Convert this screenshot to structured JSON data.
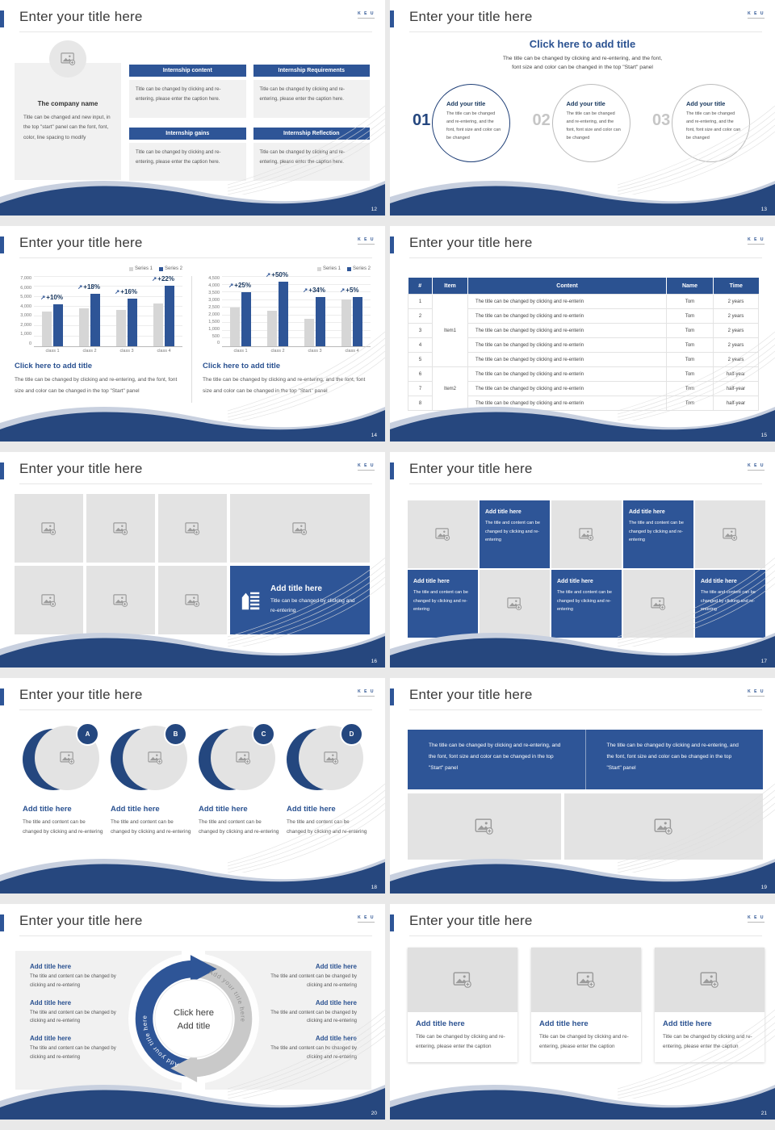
{
  "colors": {
    "brand_blue": "#2e5597",
    "wave_navy": "#26477e",
    "heading_blue": "#2b5291",
    "placeholder_gray": "#e3e3e3",
    "series1_gray": "#d6d6d6",
    "series2_blue": "#2e5597"
  },
  "logo": {
    "text": "K E U"
  },
  "chart_data": [
    {
      "type": "bar",
      "title": "",
      "categories": [
        "class 1",
        "class 2",
        "class 3",
        "class 4"
      ],
      "series": [
        {
          "name": "Series 1",
          "color": "#d6d6d6",
          "values": [
            3500,
            3800,
            3700,
            4300
          ]
        },
        {
          "name": "Series 2",
          "color": "#2e5597",
          "values": [
            4200,
            5300,
            4800,
            6100
          ]
        }
      ],
      "bar_labels": [
        "+10%",
        "+18%",
        "+16%",
        "+22%"
      ],
      "xlabel": "",
      "ylabel": "",
      "ylim": [
        0,
        7000
      ],
      "ytick": 1000,
      "grid": true,
      "legend_position": "top-right"
    },
    {
      "type": "bar",
      "title": "",
      "categories": [
        "class 1",
        "class 2",
        "class 3",
        "class 4"
      ],
      "series": [
        {
          "name": "Series 1",
          "color": "#d6d6d6",
          "values": [
            2500,
            2300,
            1800,
            3050
          ]
        },
        {
          "name": "Series 2",
          "color": "#2e5597",
          "values": [
            3500,
            4200,
            3200,
            3200
          ]
        }
      ],
      "bar_labels": [
        "+25%",
        "+50%",
        "+34%",
        "+5%"
      ],
      "xlabel": "",
      "ylabel": "",
      "ylim": [
        0,
        4500
      ],
      "ytick": 500,
      "grid": true,
      "legend_position": "top-right"
    }
  ],
  "slides": {
    "s12": {
      "page": "12",
      "title": "Enter your title here",
      "company": {
        "name": "The company name",
        "desc": "Title can be changed and new input, in the top \"start\" panel can the font, font, color, line spacing to modify"
      },
      "boxes": [
        {
          "header": "Internship content",
          "body": "Title can be changed by clicking and re-entering, please enter the caption here."
        },
        {
          "header": "Internship Requirements",
          "body": "Title can be changed by clicking and re-entering, please enter the caption here."
        },
        {
          "header": "Internship gains",
          "body": "Title can be changed by clicking and re-entering, please enter the caption here."
        },
        {
          "header": "Internship Reflection",
          "body": "Title can be changed by clicking and re-entering, please enter the caption here."
        }
      ]
    },
    "s13": {
      "page": "13",
      "title": "Enter your title here",
      "heading": "Click here to add title",
      "subheading": "The title can be changed by clicking and re-entering, and the font,\nfont size and color can be changed in the top \"Start\" panel",
      "items": [
        {
          "num": "01",
          "title": "Add your title",
          "body": "The title can be changed and re-entering, and the font, font size and color can be changed"
        },
        {
          "num": "02",
          "title": "Add your title",
          "body": "The title can be changed and re-entering, and the font, font size and color can be changed"
        },
        {
          "num": "03",
          "title": "Add your title",
          "body": "The title can be changed and re-entering, and the font, font size and color can be changed"
        }
      ]
    },
    "s14": {
      "page": "14",
      "title": "Enter your title here",
      "left": {
        "heading": "Click here to add title",
        "body": "The title can be changed by clicking and re-entering, and the font, font size and color can be changed in the top \"Start\" panel"
      },
      "right": {
        "heading": "Click here to add title",
        "body": "The title can be changed by clicking and re-entering, and the font, font size and color can be changed in the top \"Start\" panel"
      }
    },
    "s15": {
      "page": "15",
      "title": "Enter your title here",
      "table": {
        "headers": [
          "#",
          "Item",
          "Content",
          "Name",
          "Time"
        ],
        "group_items": [
          "Item1",
          "Item2"
        ],
        "rows": [
          {
            "num": "1",
            "content": "The title can be changed by clicking and re-enterin",
            "name": "Tom",
            "time": "2 years"
          },
          {
            "num": "2",
            "content": "The title can be changed by clicking and re-enterin",
            "name": "Tom",
            "time": "2 years"
          },
          {
            "num": "3",
            "content": "The title can be changed by clicking and re-enterin",
            "name": "Tom",
            "time": "2 years"
          },
          {
            "num": "4",
            "content": "The title can be changed by clicking and re-enterin",
            "name": "Tom",
            "time": "2 years"
          },
          {
            "num": "5",
            "content": "The title can be changed by clicking and re-enterin",
            "name": "Tom",
            "time": "2 years"
          },
          {
            "num": "6",
            "content": "The title can be changed by clicking and re-enterin",
            "name": "Tom",
            "time": "half-year"
          },
          {
            "num": "7",
            "content": "The title can be changed by clicking and re-enterin",
            "name": "Tom",
            "time": "half-year"
          },
          {
            "num": "8",
            "content": "The title can be changed by clicking and re-enterin",
            "name": "Tom",
            "time": "half-year"
          }
        ]
      }
    },
    "s16": {
      "page": "16",
      "title": "Enter your title here",
      "feature": {
        "title": "Add title here",
        "body": "Title can be changed by clicking and re-entering"
      }
    },
    "s17": {
      "page": "17",
      "title": "Enter your title here",
      "tiles": [
        {
          "title": "Add title here",
          "body": "The title and content can be changed by clicking and re-entering"
        },
        {
          "title": "Add title here",
          "body": "The title and content can be changed by clicking and re-entering"
        },
        {
          "title": "Add title here",
          "body": "The title and content can be changed by clicking and re-entering"
        },
        {
          "title": "Add title here",
          "body": "The title and content can be changed by clicking and re-entering"
        },
        {
          "title": "Add title here",
          "body": "The title and content can be changed by clicking and re-entering"
        }
      ]
    },
    "s18": {
      "page": "18",
      "title": "Enter your title here",
      "items": [
        {
          "badge": "A",
          "title": "Add title here",
          "body": "The title and content can be changed by clicking and re-entering"
        },
        {
          "badge": "B",
          "title": "Add title here",
          "body": "The title and content can be changed by clicking and re-entering"
        },
        {
          "badge": "C",
          "title": "Add title here",
          "body": "The title and content can be changed by clicking and re-entering"
        },
        {
          "badge": "D",
          "title": "Add title here",
          "body": "The title and content can be changed by clicking and re-entering"
        }
      ]
    },
    "s19": {
      "page": "19",
      "title": "Enter your title here",
      "banners": [
        "The title can be changed by clicking and re-entering, and the font, font size and color can be changed in the top \"Start\" panel",
        "The title can be changed by clicking and re-entering, and the font, font size and color can be changed in the top \"Start\" panel"
      ]
    },
    "s20": {
      "page": "20",
      "title": "Enter your title here",
      "center": {
        "line1": "Click here",
        "line2": "Add title"
      },
      "arcs": {
        "left": "Add your title here",
        "right": "Add your title here"
      },
      "left_items": [
        {
          "title": "Add title here",
          "body": "The title and content can be changed by clicking and re-entering"
        },
        {
          "title": "Add title here",
          "body": "The title and content can be changed by clicking and re-entering"
        },
        {
          "title": "Add title here",
          "body": "The title and content can be changed by clicking and re-entering"
        }
      ],
      "right_items": [
        {
          "title": "Add title here",
          "body": "The title and content can be changed by clicking and re-entering"
        },
        {
          "title": "Add title here",
          "body": "The title and content can be changed by clicking and re-entering"
        },
        {
          "title": "Add title here",
          "body": "The title and content can be changed by clicking and re-entering"
        }
      ]
    },
    "s21": {
      "page": "21",
      "title": "Enter your title here",
      "cards": [
        {
          "title": "Add title here",
          "body": "Title can be changed by clicking and re-entering, please enter the caption"
        },
        {
          "title": "Add title here",
          "body": "Title can be changed by clicking and re-entering, please enter the caption"
        },
        {
          "title": "Add title here",
          "body": "Title can be changed by clicking and re-entering, please enter the caption"
        }
      ]
    }
  }
}
